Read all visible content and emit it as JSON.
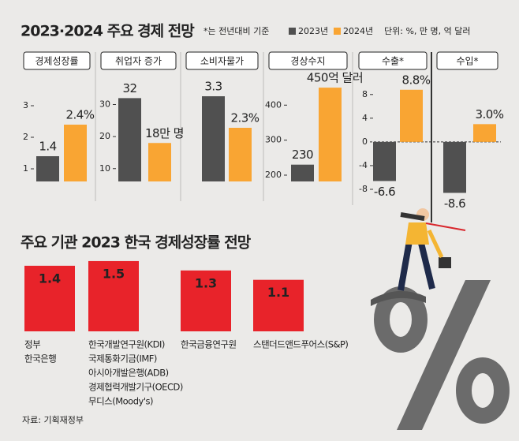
{
  "header": {
    "title": "2023·2024 주요 경제 전망",
    "note": "*는 전년대비 기준",
    "unit": "단위: %, 만 명, 억 달러"
  },
  "source": "자료: 기획재정부",
  "chart_data": [
    {
      "type": "bar",
      "title": "경제성장률",
      "ylim": [
        0.6,
        3.85
      ],
      "yticks": [
        1,
        2,
        3
      ],
      "series": [
        {
          "name": "2023년",
          "color": "#505050",
          "values": [
            1.4
          ]
        },
        {
          "name": "2024년",
          "color": "#f9a533",
          "values": [
            2.4
          ],
          "value_labels": [
            "2.4%"
          ]
        }
      ]
    },
    {
      "type": "bar",
      "title": "취업자 증가",
      "ylim": [
        6,
        38
      ],
      "yticks": [
        10,
        20,
        30
      ],
      "series": [
        {
          "name": "2023년",
          "color": "#505050",
          "values": [
            32
          ]
        },
        {
          "name": "2024년",
          "color": "#f9a533",
          "values": [
            18
          ],
          "value_labels": [
            "18만 명"
          ]
        }
      ]
    },
    {
      "type": "bar",
      "title": "소비자물가",
      "ylim": [
        0.6,
        3.85
      ],
      "series": [
        {
          "name": "2023년",
          "color": "#505050",
          "values": [
            3.3
          ]
        },
        {
          "name": "2024년",
          "color": "#f9a533",
          "values": [
            2.3
          ],
          "value_labels": [
            "2.3%"
          ]
        }
      ]
    },
    {
      "type": "bar",
      "title": "경상수지",
      "ylim": [
        182,
        475
      ],
      "yticks": [
        200,
        300,
        400
      ],
      "series": [
        {
          "name": "2023년",
          "color": "#505050",
          "values": [
            230
          ]
        },
        {
          "name": "2024년",
          "color": "#f9a533",
          "values": [
            450
          ],
          "value_labels": [
            "450억 달러"
          ]
        }
      ]
    },
    {
      "type": "bar",
      "title": "수출*",
      "ylim": [
        -10,
        10.5
      ],
      "yticks": [
        -8,
        -4,
        0,
        4,
        8
      ],
      "series": [
        {
          "name": "2023년",
          "color": "#505050",
          "values": [
            -6.6
          ]
        },
        {
          "name": "2024년",
          "color": "#f9a533",
          "values": [
            8.8
          ],
          "value_labels": [
            "8.8%"
          ]
        }
      ]
    },
    {
      "type": "bar",
      "title": "수입*",
      "ylim": [
        -10,
        10.5
      ],
      "series": [
        {
          "name": "2023년",
          "color": "#505050",
          "values": [
            -8.6
          ]
        },
        {
          "name": "2024년",
          "color": "#f9a533",
          "values": [
            3.0
          ],
          "value_labels": [
            "3.0%"
          ]
        }
      ]
    },
    {
      "type": "bar",
      "title": "주요 기관 2023 한국 경제성장률 전망",
      "color": "#e8232a",
      "ylim": [
        0,
        1.6
      ],
      "values": [
        1.4,
        1.5,
        1.3,
        1.1
      ],
      "categories": [
        [
          "정부",
          "한국은행"
        ],
        [
          "한국개발연구원(KDI)",
          "국제통화기금(IMF)",
          "아시아개발은행(ADB)",
          "경제협력개발기구(OECD)",
          "무디스(Moody's)"
        ],
        [
          "한국금융연구원"
        ],
        [
          "스탠더드앤드푸어스(S&P)"
        ]
      ]
    }
  ]
}
